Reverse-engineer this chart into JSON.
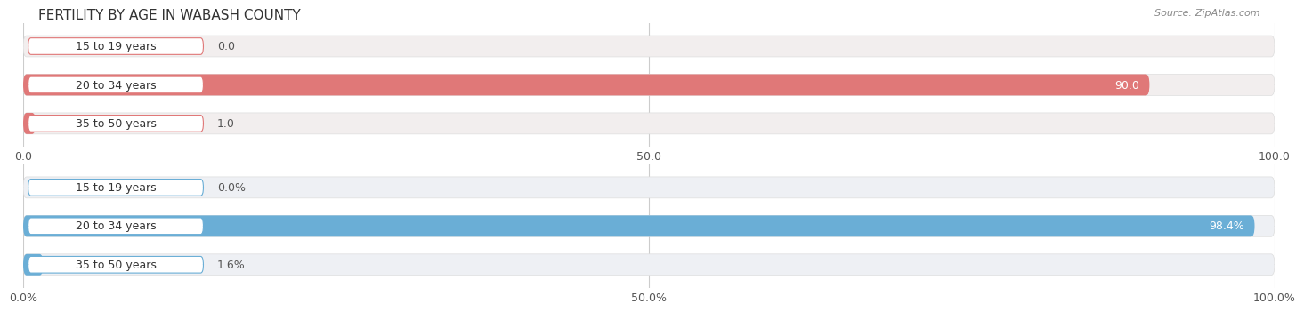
{
  "title": "FERTILITY BY AGE IN WABASH COUNTY",
  "source": "Source: ZipAtlas.com",
  "value_threshold": 50,
  "top_chart": {
    "categories": [
      "15 to 19 years",
      "20 to 34 years",
      "35 to 50 years"
    ],
    "values": [
      0.0,
      90.0,
      1.0
    ],
    "xlim": [
      0,
      100
    ],
    "xticks": [
      0.0,
      50.0,
      100.0
    ],
    "xtick_labels": [
      "0.0",
      "50.0",
      "100.0"
    ],
    "bar_color": "#E07878",
    "bar_bg_color": "#F2EEEE",
    "label_box_border": "#E07878"
  },
  "bottom_chart": {
    "categories": [
      "15 to 19 years",
      "20 to 34 years",
      "35 to 50 years"
    ],
    "values": [
      0.0,
      98.4,
      1.6
    ],
    "xlim": [
      0,
      100
    ],
    "xticks": [
      0.0,
      50.0,
      100.0
    ],
    "xtick_labels": [
      "0.0%",
      "50.0%",
      "100.0%"
    ],
    "bar_color": "#6AAED6",
    "bar_bg_color": "#EEF0F4",
    "label_box_border": "#6AAED6"
  },
  "label_font_size": 9,
  "value_font_size": 9,
  "title_font_size": 11,
  "source_font_size": 8,
  "background_color": "#FFFFFF",
  "bar_height": 0.55
}
